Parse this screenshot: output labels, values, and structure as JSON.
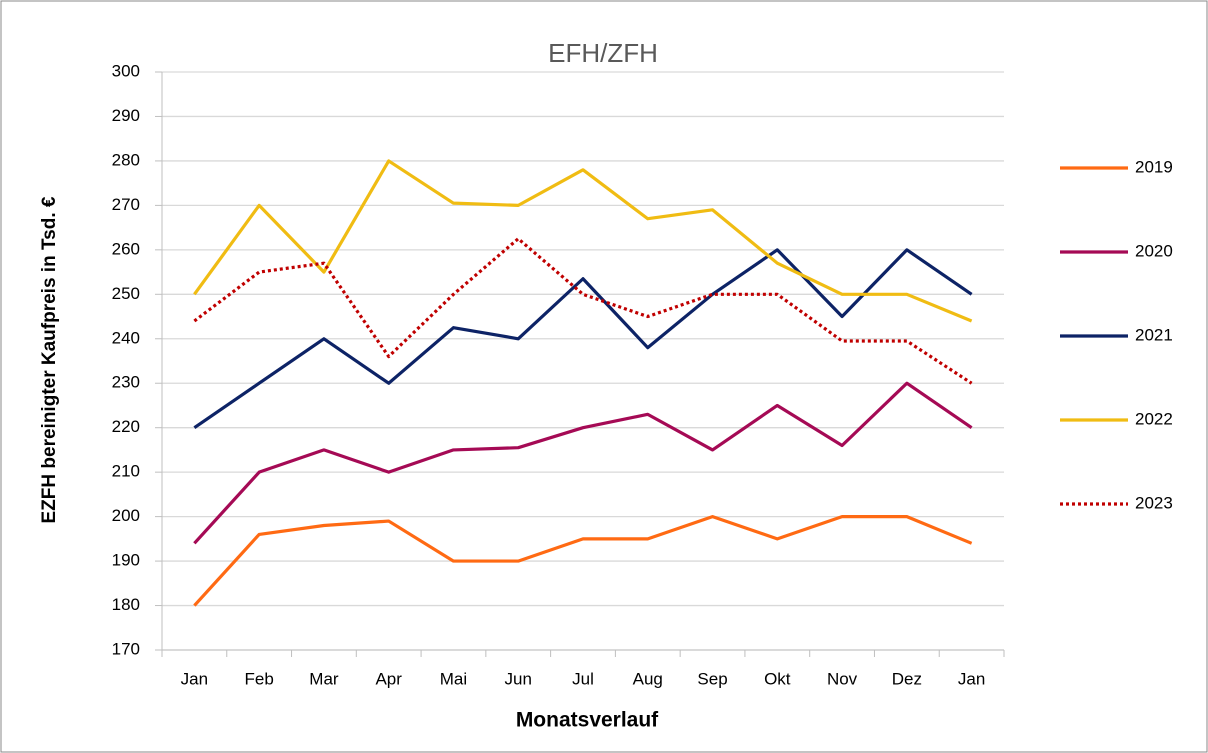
{
  "chart_data": {
    "type": "line",
    "title": "EFH/ZFH",
    "x_label": "Monatsverlauf",
    "y_label": "EZFH bereinigter Kaufpreis in Tsd. €",
    "categories": [
      "Jan",
      "Feb",
      "Mar",
      "Apr",
      "Mai",
      "Jun",
      "Jul",
      "Aug",
      "Sep",
      "Okt",
      "Nov",
      "Dez",
      "Jan"
    ],
    "series": [
      {
        "name": "2019",
        "color": "#ff6a13",
        "style": "solid",
        "values": [
          180,
          196,
          198,
          199,
          190,
          190,
          195,
          195,
          200,
          195,
          200,
          200,
          194
        ]
      },
      {
        "name": "2020",
        "color": "#a50a55",
        "style": "solid",
        "values": [
          194,
          210,
          215,
          210,
          215,
          215.5,
          220,
          223,
          215,
          225,
          216,
          230,
          220
        ]
      },
      {
        "name": "2021",
        "color": "#0d2366",
        "style": "solid",
        "values": [
          220,
          230,
          240,
          230,
          242.5,
          240,
          253.5,
          238,
          250,
          260,
          245,
          260,
          250
        ]
      },
      {
        "name": "2022",
        "color": "#f0bc13",
        "style": "solid",
        "values": [
          250,
          270,
          255,
          280,
          270.5,
          270,
          278,
          267,
          269,
          257,
          250,
          250,
          244
        ]
      },
      {
        "name": "2023",
        "color": "#c00000",
        "style": "dotted",
        "values": [
          244,
          255,
          257,
          236,
          250,
          262.5,
          250,
          245,
          250,
          250,
          239.5,
          239.5,
          230
        ]
      }
    ],
    "ylim": [
      170,
      300
    ],
    "yticks": [
      170,
      180,
      190,
      200,
      210,
      220,
      230,
      240,
      250,
      260,
      270,
      280,
      290,
      300
    ],
    "grid": true,
    "legend": "right"
  }
}
